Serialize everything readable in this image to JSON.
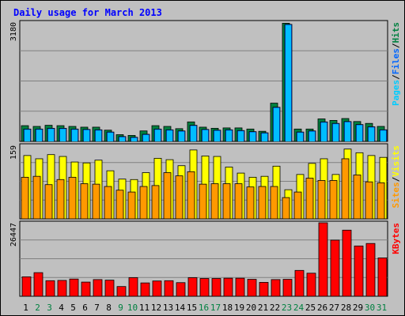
{
  "window": {
    "title": "Daily usage for March 2013"
  },
  "colors": {
    "pages": "#00ccff",
    "files": "#0066ff",
    "hits": "#008040",
    "visits": "#ffff00",
    "sites": "#ff9900",
    "kbytes": "#ff0000",
    "axis_day_normal": "#000000",
    "axis_day_weekend": "#008040"
  },
  "chart_data": {
    "type": "bar",
    "title": "Daily usage for March 2013",
    "categories": [
      "1",
      "2",
      "3",
      "4",
      "5",
      "6",
      "7",
      "8",
      "9",
      "10",
      "11",
      "12",
      "13",
      "14",
      "15",
      "16",
      "17",
      "18",
      "19",
      "20",
      "21",
      "22",
      "23",
      "24",
      "25",
      "26",
      "27",
      "28",
      "29",
      "30",
      "31"
    ],
    "weekend_days": [
      "2",
      "3",
      "9",
      "10",
      "16",
      "17",
      "23",
      "24",
      "30",
      "31"
    ],
    "panels": [
      {
        "name": "hits-files-pages",
        "ymax_label": "3180",
        "ylim": [
          0,
          3180
        ],
        "legend": [
          "Pages",
          "/",
          "Files",
          "/",
          "Hits"
        ],
        "series": [
          {
            "name": "Hits",
            "values": [
              420,
              400,
              430,
              420,
              400,
              380,
              380,
              300,
              180,
              160,
              280,
              420,
              400,
              340,
              520,
              380,
              350,
              360,
              360,
              330,
              270,
              1020,
              3150,
              330,
              330,
              600,
              560,
              610,
              530,
              480,
              400
            ]
          },
          {
            "name": "Files",
            "values": [
              330,
              330,
              350,
              350,
              330,
              320,
              310,
              250,
              130,
              110,
              190,
              330,
              310,
              280,
              430,
              320,
              300,
              310,
              290,
              260,
              230,
              910,
              3120,
              250,
              280,
              520,
              480,
              530,
              450,
              390,
              310
            ]
          },
          {
            "name": "Pages",
            "values": [
              0,
              0,
              0,
              0,
              0,
              0,
              0,
              0,
              0,
              0,
              0,
              0,
              0,
              0,
              0,
              0,
              0,
              0,
              0,
              0,
              0,
              0,
              0,
              0,
              0,
              0,
              0,
              0,
              0,
              0,
              0
            ]
          }
        ]
      },
      {
        "name": "visits-sites",
        "ymax_label": "159",
        "ylim": [
          0,
          159
        ],
        "legend": [
          "Sites",
          "/",
          "Visits"
        ],
        "series": [
          {
            "name": "Visits",
            "values": [
              137,
              130,
              139,
              135,
              123,
              121,
              127,
              104,
              86,
              85,
              100,
              131,
              128,
              115,
              149,
              136,
              135,
              112,
              99,
              90,
              92,
              114,
              63,
              96,
              120,
              130,
              96,
              151,
              143,
              137,
              133
            ]
          },
          {
            "name": "Sites",
            "values": [
              90,
              92,
              74,
              85,
              90,
              76,
              75,
              70,
              62,
              58,
              70,
              72,
              100,
              93,
              102,
              75,
              76,
              76,
              76,
              69,
              70,
              70,
              46,
              58,
              88,
              83,
              83,
              130,
              95,
              80,
              78
            ]
          }
        ]
      },
      {
        "name": "kbytes",
        "ymax_label": "26447",
        "ylim": [
          0,
          26447
        ],
        "legend": [
          "KBytes"
        ],
        "series": [
          {
            "name": "KBytes",
            "values": [
              7000,
              8500,
              5600,
              5700,
              6200,
              5100,
              6000,
              5800,
              3500,
              6700,
              4800,
              5500,
              5600,
              4900,
              6700,
              6400,
              6400,
              6500,
              6500,
              6100,
              5000,
              6000,
              6100,
              9300,
              8300,
              26447,
              20200,
              23800,
              18100,
              19000,
              13800
            ]
          }
        ]
      }
    ]
  }
}
